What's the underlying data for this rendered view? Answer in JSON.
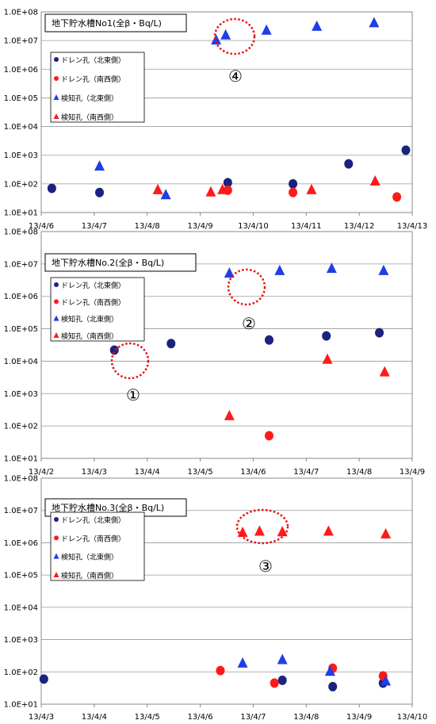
{
  "colors": {
    "drain_ne": "#1a237e",
    "drain_sw": "#ff1a1a",
    "detect_ne": "#1f3ee6",
    "detect_sw": "#ff1a1a",
    "highlight": "#ee1111",
    "grid": "#999999"
  },
  "chart_data": [
    {
      "type": "scatter",
      "title": "地下貯水槽No1(全β・Bq/L)",
      "y_scale": "log",
      "ylim": [
        10,
        100000000
      ],
      "y_ticks": [
        "1.0E+01",
        "1.0E+02",
        "1.0E+03",
        "1.0E+04",
        "1.0E+05",
        "1.0E+06",
        "1.0E+07",
        "1.0E+08"
      ],
      "x_ticks": [
        "13/4/6",
        "13/4/7",
        "13/4/8",
        "13/4/9",
        "13/4/10",
        "13/4/11",
        "13/4/12",
        "13/4/13"
      ],
      "grid": true,
      "legend_position": "top-left",
      "series": [
        {
          "name": "ドレン孔（北東側）",
          "marker": "circle",
          "color_key": "drain_ne",
          "points": [
            [
              "13/4/6",
              70
            ],
            [
              "13/4/7",
              50
            ],
            [
              "13/4/9",
              110
            ],
            [
              "13/4/10",
              100
            ],
            [
              "13/4/11",
              500
            ],
            [
              "13/4/12",
              1500
            ]
          ]
        },
        {
          "name": "ドレン孔（南西側）",
          "marker": "circle",
          "color_key": "drain_sw",
          "points": [
            [
              "13/4/9",
              60
            ],
            [
              "13/4/10",
              50
            ],
            [
              "13/4/12",
              35
            ]
          ]
        },
        {
          "name": "検知孔（北東側）",
          "marker": "triangle",
          "color_key": "detect_ne",
          "points": [
            [
              "13/4/7",
              400
            ],
            [
              "13/4/8",
              40
            ],
            [
              "13/4/9",
              10000000
            ],
            [
              "13/4/9",
              15000000
            ],
            [
              "13/4/10",
              22000000
            ],
            [
              "13/4/11",
              30000000
            ],
            [
              "13/4/12",
              40000000
            ]
          ]
        },
        {
          "name": "検知孔（南西側）",
          "marker": "triangle",
          "color_key": "detect_sw",
          "points": [
            [
              "13/4/8",
              60
            ],
            [
              "13/4/9",
              50
            ],
            [
              "13/4/9",
              60
            ],
            [
              "13/4/11",
              60
            ],
            [
              "13/4/12",
              120
            ]
          ]
        }
      ],
      "annotations": [
        {
          "label": "④",
          "target_x": "13/4/9",
          "target_y": 15000000
        }
      ]
    },
    {
      "type": "scatter",
      "title": "地下貯水槽No.2(全β・Bq/L)",
      "y_scale": "log",
      "ylim": [
        10,
        100000000
      ],
      "y_ticks": [
        "1.0E+01",
        "1.0E+02",
        "1.0E+03",
        "1.0E+04",
        "1.0E+05",
        "1.0E+06",
        "1.0E+07",
        "1.0E+08"
      ],
      "x_ticks": [
        "13/4/2",
        "13/4/3",
        "13/4/4",
        "13/4/5",
        "13/4/6",
        "13/4/7",
        "13/4/8",
        "13/4/9"
      ],
      "grid": true,
      "legend_position": "top-left",
      "series": [
        {
          "name": "ドレン孔（北東側）",
          "marker": "circle",
          "color_key": "drain_ne",
          "points": [
            [
              "13/4/3",
              22000
            ],
            [
              "13/4/4",
              35000
            ],
            [
              "13/4/6",
              45000
            ],
            [
              "13/4/7",
              60000
            ],
            [
              "13/4/8",
              75000
            ]
          ]
        },
        {
          "name": "ドレン孔（南西側）",
          "marker": "circle",
          "color_key": "drain_sw",
          "points": [
            [
              "13/4/6",
              50
            ]
          ]
        },
        {
          "name": "検知孔（北東側）",
          "marker": "triangle",
          "color_key": "detect_ne",
          "points": [
            [
              "13/4/5",
              5000000
            ],
            [
              "13/4/6",
              6000000
            ],
            [
              "13/4/7",
              7000000
            ],
            [
              "13/4/8",
              6000000
            ]
          ]
        },
        {
          "name": "検知孔（南西側）",
          "marker": "triangle",
          "color_key": "detect_sw",
          "points": [
            [
              "13/4/5",
              200
            ],
            [
              "13/4/7",
              11000
            ],
            [
              "13/4/8",
              4500
            ]
          ]
        }
      ],
      "annotations": [
        {
          "label": "①",
          "target_x": "13/4/3",
          "target_y": 22000
        },
        {
          "label": "②",
          "target_x": "13/4/5",
          "target_y": 5000000
        }
      ]
    },
    {
      "type": "scatter",
      "title": "地下貯水槽No.3(全β・Bq/L)",
      "y_scale": "log",
      "ylim": [
        10,
        100000000
      ],
      "y_ticks": [
        "1.0E+01",
        "1.0E+02",
        "1.0E+03",
        "1.0E+04",
        "1.0E+05",
        "1.0E+06",
        "1.0E+07",
        "1.0E+08"
      ],
      "x_ticks": [
        "13/4/3",
        "13/4/4",
        "13/4/5",
        "13/4/6",
        "13/4/7",
        "13/4/8",
        "13/4/9",
        "13/4/10"
      ],
      "grid": true,
      "legend_position": "top-left",
      "series": [
        {
          "name": "ドレン孔（北東側）",
          "marker": "circle",
          "color_key": "drain_ne",
          "points": [
            [
              "13/4/3",
              60
            ],
            [
              "13/4/7",
              55
            ],
            [
              "13/4/8",
              35
            ],
            [
              "13/4/9",
              45
            ]
          ]
        },
        {
          "name": "ドレン孔（南西側）",
          "marker": "circle",
          "color_key": "drain_sw",
          "points": [
            [
              "13/4/6",
              110
            ],
            [
              "13/4/7",
              45
            ],
            [
              "13/4/8",
              130
            ],
            [
              "13/4/9",
              75
            ]
          ]
        },
        {
          "name": "検知孔（北東側）",
          "marker": "triangle",
          "color_key": "detect_ne",
          "points": [
            [
              "13/4/6",
              180
            ],
            [
              "13/4/7",
              230
            ],
            [
              "13/4/8",
              100
            ],
            [
              "13/4/9",
              50
            ]
          ]
        },
        {
          "name": "検知孔（南西側）",
          "marker": "triangle",
          "color_key": "detect_sw",
          "points": [
            [
              "13/4/6",
              2000000
            ],
            [
              "13/4/7",
              2200000
            ],
            [
              "13/4/7",
              2100000
            ],
            [
              "13/4/8",
              2200000
            ],
            [
              "13/4/9",
              1800000
            ]
          ]
        }
      ],
      "annotations": [
        {
          "label": "③",
          "target_x": "13/4/7",
          "target_y": 2200000
        }
      ]
    }
  ]
}
